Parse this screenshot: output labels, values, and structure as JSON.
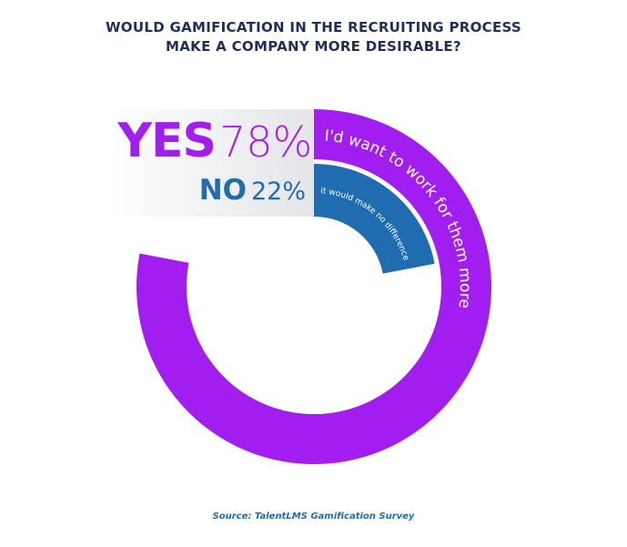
{
  "chart_data": {
    "type": "radial-bar",
    "title": "WOULD GAMIFICATION IN THE RECRUITING PROCESS MAKE A COMPANY MORE DESIRABLE?",
    "rlim": [
      0,
      100
    ],
    "series": [
      {
        "name": "YES",
        "color": "#a21ef0",
        "values": [
          78
        ],
        "value_labels": [
          "78%"
        ],
        "description": "I'd want to work for them more"
      },
      {
        "name": "NO",
        "color": "#1f6cb0",
        "values": [
          22
        ],
        "value_labels": [
          "22%"
        ],
        "description": "it would make no difference"
      }
    ],
    "source": "Source: TalentLMS Gamification Survey"
  }
}
